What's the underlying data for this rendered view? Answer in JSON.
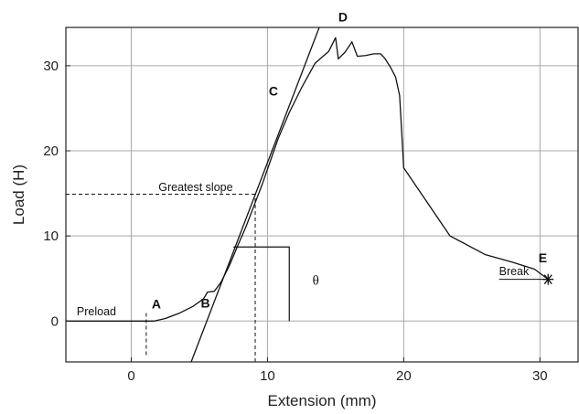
{
  "chart_data": {
    "type": "line",
    "title": "",
    "xlabel": "Extension (mm)",
    "ylabel": "Load (H)",
    "xlim": [
      -4.8,
      32.8
    ],
    "ylim": [
      -4.8,
      34.5
    ],
    "xticks": [
      0,
      10,
      20,
      30
    ],
    "yticks": [
      0,
      10,
      20,
      30
    ],
    "grid": true,
    "series": [
      {
        "name": "",
        "role": "load-extension-curve",
        "points": [
          [
            -4.8,
            0
          ],
          [
            1.7,
            0
          ],
          [
            2.5,
            0.3
          ],
          [
            3.5,
            0.9
          ],
          [
            4.5,
            1.7
          ],
          [
            5.3,
            2.6
          ],
          [
            5.6,
            3.4
          ],
          [
            6.1,
            3.5
          ],
          [
            6.6,
            4.6
          ],
          [
            7.2,
            6.5
          ],
          [
            7.8,
            8.8
          ],
          [
            8.4,
            11.0
          ],
          [
            9.0,
            13.5
          ],
          [
            9.6,
            16.0
          ],
          [
            10.1,
            18.3
          ],
          [
            10.8,
            21.5
          ],
          [
            11.6,
            24.5
          ],
          [
            12.5,
            27.4
          ],
          [
            13.5,
            30.3
          ],
          [
            14.5,
            31.7
          ],
          [
            15.0,
            33.3
          ],
          [
            15.2,
            30.8
          ],
          [
            15.7,
            31.6
          ],
          [
            16.2,
            32.8
          ],
          [
            16.6,
            31.1
          ],
          [
            17.2,
            31.2
          ],
          [
            17.8,
            31.4
          ],
          [
            18.3,
            31.4
          ],
          [
            18.6,
            30.9
          ],
          [
            19.0,
            29.9
          ],
          [
            19.4,
            28.7
          ],
          [
            19.7,
            26.5
          ],
          [
            20.0,
            18.0
          ],
          [
            23.4,
            10.0
          ],
          [
            26.0,
            7.8
          ],
          [
            28.0,
            6.9
          ],
          [
            29.6,
            6.1
          ],
          [
            30.6,
            4.9
          ]
        ]
      },
      {
        "name": "",
        "role": "greatest-slope-tangent",
        "points": [
          [
            4.4,
            -4.8
          ],
          [
            13.8,
            34.5
          ]
        ]
      }
    ],
    "annotations": {
      "preload": {
        "text": "Preload",
        "x": -4.0,
        "y": 0.7
      },
      "greatest_slope": {
        "text": "Greatest slope",
        "x": 2.0,
        "y": 15.3
      },
      "break": {
        "text": "Break",
        "x": 27.0,
        "y": 5.4
      },
      "theta": {
        "text": "θ",
        "x": 13.3,
        "y": 4.3
      },
      "A": {
        "text": "A",
        "x": 1.5,
        "y": 1.5
      },
      "B": {
        "text": "B",
        "x": 5.1,
        "y": 1.6
      },
      "C": {
        "text": "C",
        "x": 10.1,
        "y": 26.5
      },
      "D": {
        "text": "D",
        "x": 15.2,
        "y": 35.2
      },
      "E": {
        "text": "E",
        "x": 29.9,
        "y": 6.9
      }
    },
    "guides": {
      "greatest_slope_hline": {
        "x1": -4.8,
        "x2": 9.3,
        "y": 14.9
      },
      "greatest_slope_vline": {
        "x": 9.1,
        "y1": -4.8,
        "y2": 14.9
      },
      "a_vline": {
        "x": 1.1,
        "y1": -4.0,
        "y2": 1.1
      },
      "break_line": {
        "x1": 27.0,
        "x2": 30.6,
        "y": 4.9
      },
      "theta_triangle": [
        [
          7.5,
          8.7
        ],
        [
          11.6,
          8.7
        ],
        [
          11.6,
          0
        ]
      ],
      "break_point": {
        "x": 30.6,
        "y": 4.9
      }
    }
  }
}
